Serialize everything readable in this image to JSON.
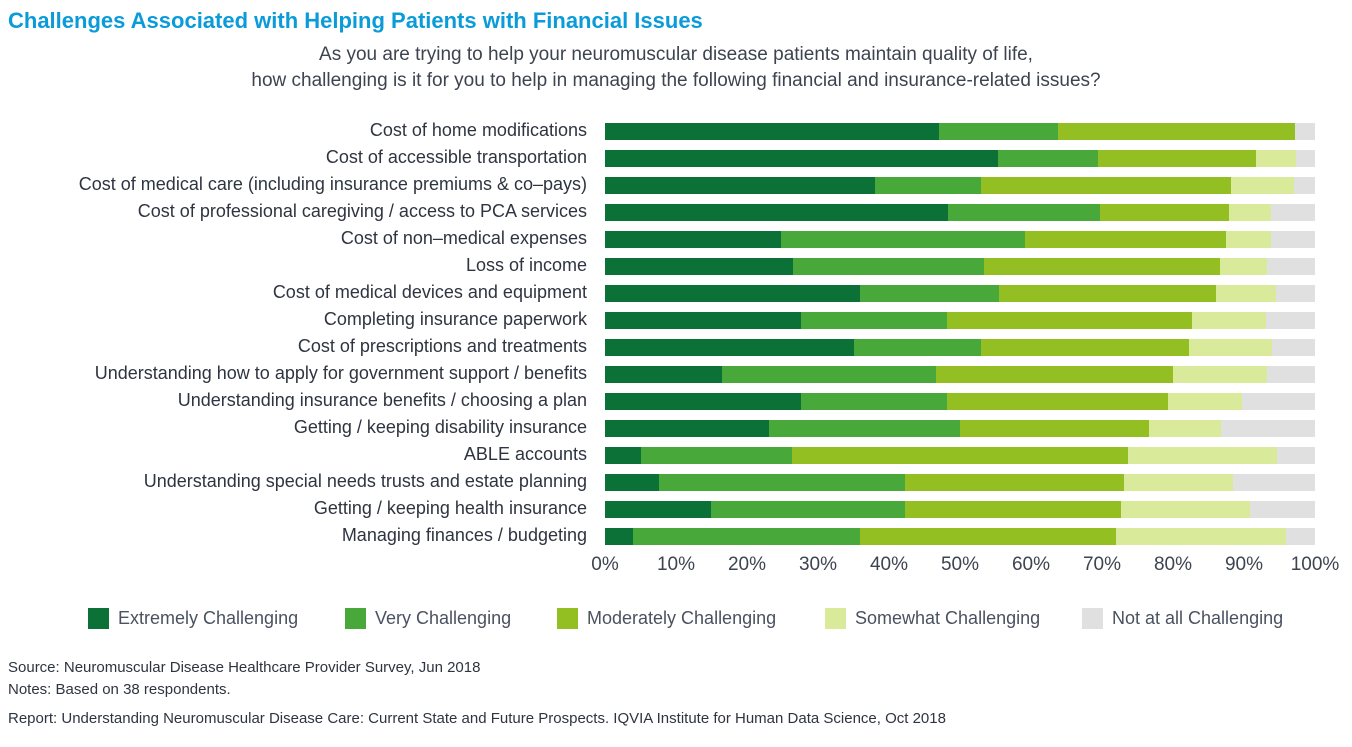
{
  "chart_data": {
    "type": "bar",
    "orientation": "horizontal-stacked-100",
    "title": "Challenges Associated with Helping Patients with Financial Issues",
    "subtitle": [
      "As you are trying to help your neuromuscular disease patients maintain quality of life,",
      "how challenging is it for you to help in managing the following financial and insurance-related issues?"
    ],
    "categories": [
      "Cost of home modifications",
      "Cost of accessible transportation",
      "Cost of medical care (including insurance premiums & co–pays)",
      "Cost of professional caregiving / access to PCA services",
      "Cost of non–medical expenses",
      "Loss of income",
      "Cost of medical devices and equipment",
      "Completing insurance paperwork",
      "Cost of prescriptions and treatments",
      "Understanding how to apply for government support / benefits",
      "Understanding insurance benefits / choosing a plan",
      "Getting / keeping disability insurance",
      "ABLE accounts",
      "Understanding special needs trusts and estate planning",
      "Getting / keeping health insurance",
      "Managing finances / budgeting"
    ],
    "series": [
      {
        "name": "Extremely Challenging",
        "color": "#0b7136",
        "values": [
          47.0,
          55.4,
          38.0,
          48.3,
          24.8,
          26.5,
          35.9,
          27.6,
          35.1,
          16.5,
          27.6,
          23.1,
          5.1,
          7.6,
          14.9,
          3.9
        ]
      },
      {
        "name": "Very Challenging",
        "color": "#48a93a",
        "values": [
          16.8,
          14.0,
          15.0,
          21.4,
          34.4,
          26.9,
          19.6,
          20.6,
          17.9,
          30.1,
          20.6,
          26.9,
          21.2,
          34.7,
          27.4,
          32.0
        ]
      },
      {
        "name": "Moderately Challenging",
        "color": "#93bf22",
        "values": [
          33.4,
          22.3,
          35.2,
          18.2,
          28.3,
          33.2,
          30.6,
          34.5,
          29.3,
          33.4,
          31.1,
          26.6,
          47.4,
          30.8,
          30.4,
          36.1
        ]
      },
      {
        "name": "Somewhat Challenging",
        "color": "#d9eb9b",
        "values": [
          0,
          5.6,
          8.8,
          5.9,
          6.3,
          6.6,
          8.4,
          10.4,
          11.6,
          13.2,
          10.4,
          10.2,
          20.9,
          15.4,
          18.1,
          23.9
        ]
      },
      {
        "name": "Not at all Challenging",
        "color": "#e0e0e0",
        "values": [
          2.8,
          2.7,
          3.0,
          6.2,
          6.2,
          6.8,
          5.5,
          6.9,
          6.1,
          6.8,
          10.3,
          13.2,
          5.4,
          11.5,
          9.2,
          4.1
        ]
      }
    ],
    "xlim": [
      0,
      100
    ],
    "x_ticks": [
      "0%",
      "10%",
      "20%",
      "30%",
      "40%",
      "50%",
      "60%",
      "70%",
      "80%",
      "90%",
      "100%"
    ],
    "legend": "bottom",
    "grid": false
  },
  "footer": {
    "source": "Source: Neuromuscular Disease Healthcare Provider Survey, Jun 2018",
    "notes": "Notes: Based on 38 respondents.",
    "report": "Report: Understanding Neuromuscular Disease Care: Current State and Future Prospects. IQVIA Institute for Human Data Science, Oct 2018"
  }
}
